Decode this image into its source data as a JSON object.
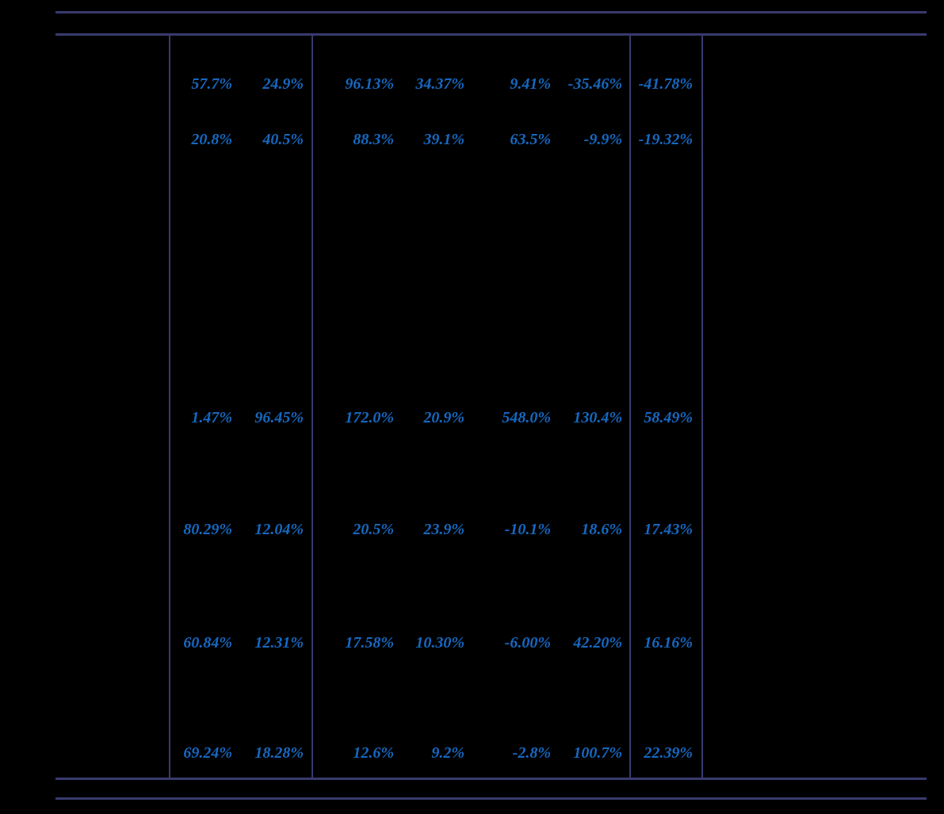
{
  "colors": {
    "background": "#000000",
    "grid_line": "#3a3a6e",
    "value_text": "#1668c0"
  },
  "table": {
    "rows": [
      {
        "values": [
          "57.7%",
          "24.9%",
          "96.13%",
          "34.37%",
          "9.41%",
          "-35.46%",
          "-41.78%"
        ]
      },
      {
        "values": [
          "20.8%",
          "40.5%",
          "88.3%",
          "39.1%",
          "63.5%",
          "-9.9%",
          "-19.32%"
        ]
      },
      {
        "values": [
          "1.47%",
          "96.45%",
          "172.0%",
          "20.9%",
          "548.0%",
          "130.4%",
          "58.49%"
        ]
      },
      {
        "values": [
          "80.29%",
          "12.04%",
          "20.5%",
          "23.9%",
          "-10.1%",
          "18.6%",
          "17.43%"
        ]
      },
      {
        "values": [
          "60.84%",
          "12.31%",
          "17.58%",
          "10.30%",
          "-6.00%",
          "42.20%",
          "16.16%"
        ]
      },
      {
        "values": [
          "69.24%",
          "18.28%",
          "12.6%",
          "9.2%",
          "-2.8%",
          "100.7%",
          "22.39%"
        ]
      }
    ]
  }
}
